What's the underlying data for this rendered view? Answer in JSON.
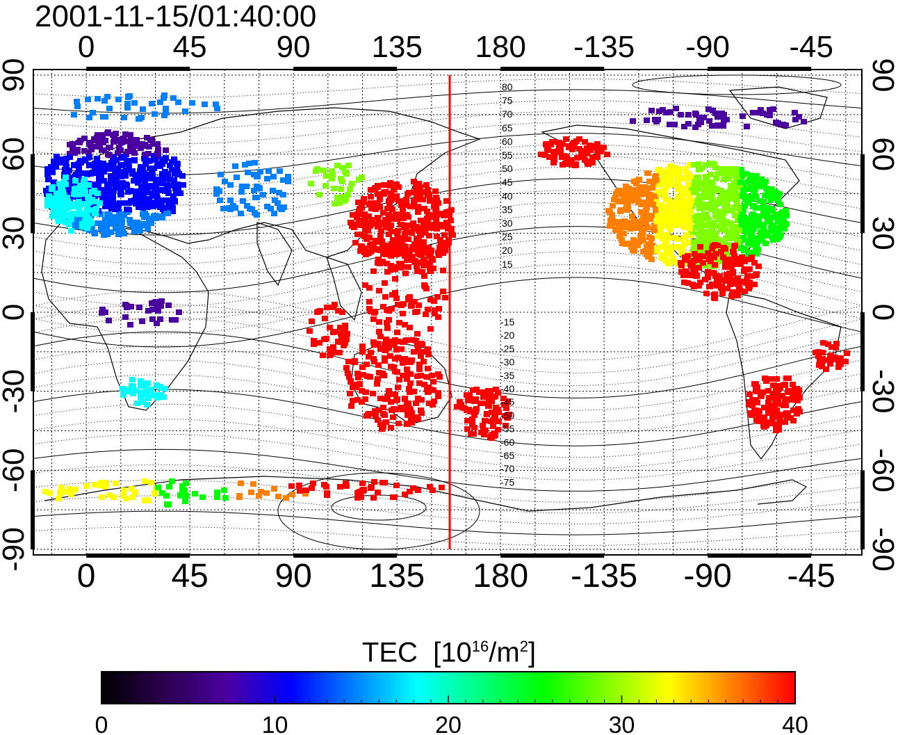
{
  "title": "2001-11-15/01:40:00",
  "map": {
    "lon_tick_labels": [
      "0",
      "45",
      "90",
      "135",
      "180",
      "-135",
      "-90",
      "-45"
    ],
    "lat_tick_labels": [
      "90",
      "60",
      "30",
      "0",
      "-30",
      "-60",
      "-90"
    ],
    "marker_line_lon": 155,
    "marker_line_color": "#ff0000",
    "contour_labels_north": [
      "80",
      "75",
      "70",
      "65",
      "60",
      "55",
      "50",
      "45",
      "40",
      "35",
      "30",
      "25",
      "20",
      "15"
    ],
    "contour_labels_south": [
      "-15",
      "-20",
      "-25",
      "-30",
      "-35",
      "-40",
      "-45",
      "-50",
      "-55",
      "-60",
      "-65",
      "-70",
      "-75"
    ]
  },
  "colorbar": {
    "title_main": "TEC",
    "title_unit_prefix": "[10",
    "title_unit_exp": "16",
    "title_unit_mid": "/m",
    "title_unit_exp2": "2",
    "title_unit_suffix": "]",
    "min": 0,
    "max": 40,
    "tick_labels": [
      "0",
      "10",
      "20",
      "30",
      "40"
    ],
    "colors": [
      "#000000",
      "#2b004f",
      "#4b00a0",
      "#0000ff",
      "#0080ff",
      "#00ffff",
      "#00ff80",
      "#00ff00",
      "#80ff00",
      "#ffff00",
      "#ff8000",
      "#ff0000"
    ]
  }
}
